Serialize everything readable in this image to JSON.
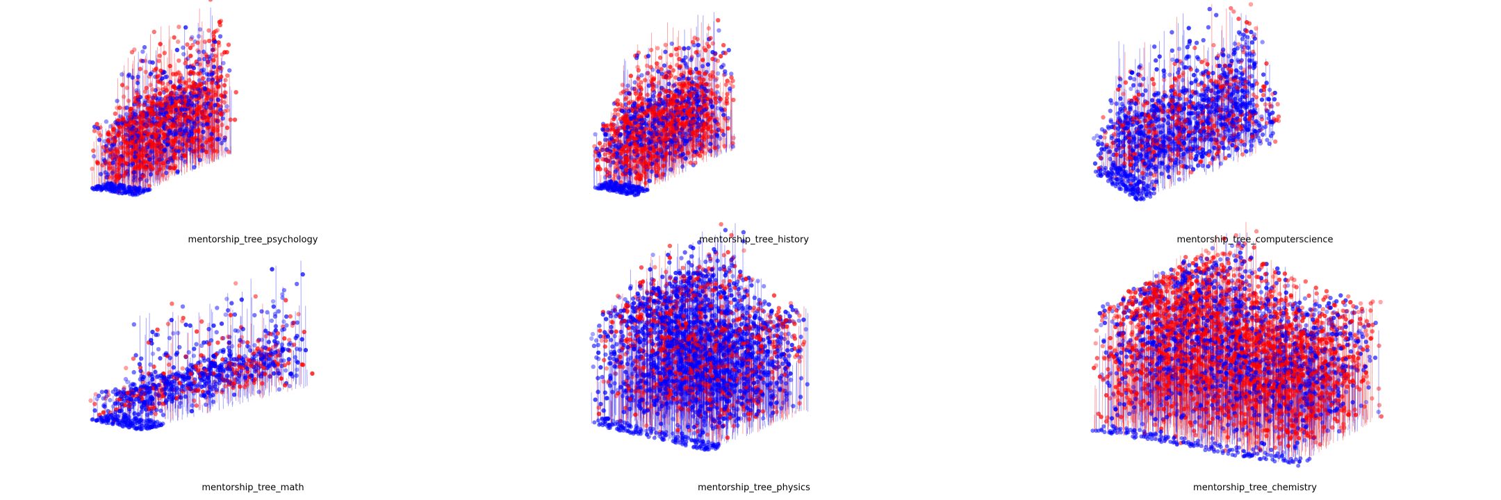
{
  "chart_data": [
    {
      "type": "scatter",
      "title": "mentorship_tree_psychology",
      "legend": "none",
      "axes": "hidden",
      "grid": false,
      "projection": "3d",
      "series_colors": [
        "#ff0000",
        "#0000ff"
      ],
      "density": "medium",
      "dominant_color": "#ff0000"
    },
    {
      "type": "scatter",
      "title": "mentorship_tree_history",
      "legend": "none",
      "axes": "hidden",
      "grid": false,
      "projection": "3d",
      "series_colors": [
        "#ff0000",
        "#0000ff"
      ],
      "density": "medium",
      "dominant_color": "#ff0000"
    },
    {
      "type": "scatter",
      "title": "mentorship_tree_computerscience",
      "legend": "none",
      "axes": "hidden",
      "grid": false,
      "projection": "3d",
      "series_colors": [
        "#ff0000",
        "#0000ff"
      ],
      "density": "medium",
      "dominant_color": "#0000ff"
    },
    {
      "type": "scatter",
      "title": "mentorship_tree_math",
      "legend": "none",
      "axes": "hidden",
      "grid": false,
      "projection": "3d",
      "series_colors": [
        "#ff0000",
        "#0000ff"
      ],
      "density": "low",
      "dominant_color": "#0000ff"
    },
    {
      "type": "scatter",
      "title": "mentorship_tree_physics",
      "legend": "none",
      "axes": "hidden",
      "grid": false,
      "projection": "3d",
      "series_colors": [
        "#ff0000",
        "#0000ff"
      ],
      "density": "high",
      "dominant_color": "#0000ff"
    },
    {
      "type": "scatter",
      "title": "mentorship_tree_chemistry",
      "legend": "none",
      "axes": "hidden",
      "grid": false,
      "projection": "3d",
      "series_colors": [
        "#ff0000",
        "#0000ff"
      ],
      "density": "very-high",
      "dominant_color": "#ff0000"
    }
  ]
}
